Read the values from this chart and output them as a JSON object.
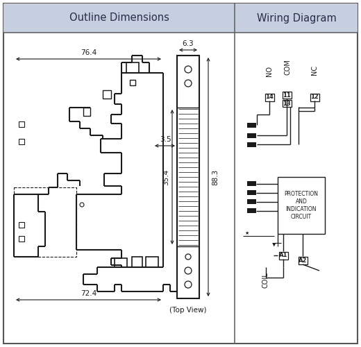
{
  "title_left": "Outline Dimensions",
  "title_right": "Wiring Diagram",
  "header_bg": "#c5cfe0",
  "bg_color": "#ffffff",
  "line_color": "#1a1a1a",
  "dim_76_4": "76.4",
  "dim_72_4": "72.4",
  "dim_88_3": "88.3",
  "dim_35_4": "35.4",
  "dim_3_5": "3.5",
  "dim_6_3": "6.3",
  "top_view_label": "(Top View)",
  "label_NO": "NO",
  "label_COM": "COM",
  "label_NC": "NC",
  "label_14": "14",
  "label_11": "11",
  "label_13": "13",
  "label_12": "12",
  "label_A1": "A1",
  "label_A2": "A2",
  "label_COIL": "COIL",
  "label_PROTECTION": "PROTECTION\nAND\nINDICATION\nCIRCUIT"
}
